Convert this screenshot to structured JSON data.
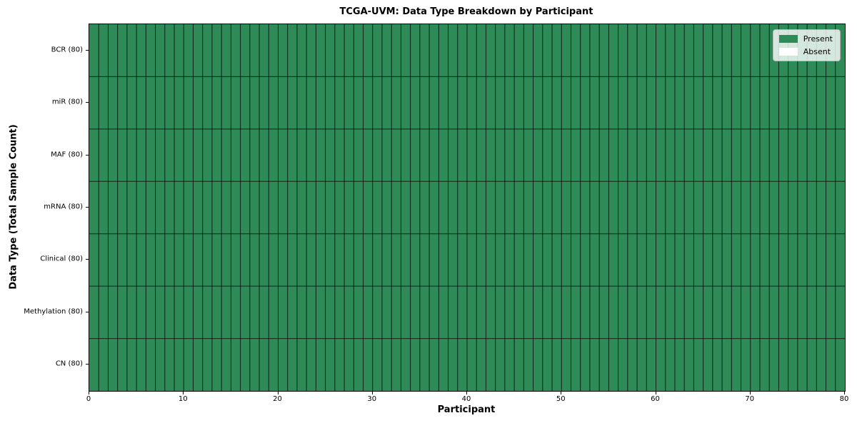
{
  "chart_data": {
    "type": "heatmap",
    "title": "TCGA-UVM: Data Type Breakdown by Participant",
    "xlabel": "Participant",
    "ylabel": "Data Type (Total Sample Count)",
    "xlim": [
      0,
      80
    ],
    "x_ticks": [
      0,
      10,
      20,
      30,
      40,
      50,
      60,
      70,
      80
    ],
    "n_participants": 80,
    "rows": [
      {
        "label": "BCR (80)",
        "data_type": "BCR",
        "total_sample_count": 80,
        "present_count": 80,
        "absent_count": 0
      },
      {
        "label": "miR (80)",
        "data_type": "miR",
        "total_sample_count": 80,
        "present_count": 80,
        "absent_count": 0
      },
      {
        "label": "MAF (80)",
        "data_type": "MAF",
        "total_sample_count": 80,
        "present_count": 80,
        "absent_count": 0
      },
      {
        "label": "mRNA (80)",
        "data_type": "mRNA",
        "total_sample_count": 80,
        "present_count": 80,
        "absent_count": 0
      },
      {
        "label": "Clinical (80)",
        "data_type": "Clinical",
        "total_sample_count": 80,
        "present_count": 80,
        "absent_count": 0
      },
      {
        "label": "Methylation (80)",
        "data_type": "Methylation",
        "total_sample_count": 80,
        "present_count": 80,
        "absent_count": 0
      },
      {
        "label": "CN (80)",
        "data_type": "CN",
        "total_sample_count": 80,
        "present_count": 80,
        "absent_count": 0
      }
    ],
    "cell_state_all_rows": "Present",
    "legend": {
      "position": "upper right",
      "entries": [
        {
          "label": "Present",
          "color": "#2e8b57"
        },
        {
          "label": "Absent",
          "color": "#ffffff"
        }
      ]
    },
    "colors": {
      "present": "#2e8b57",
      "absent": "#ffffff",
      "grid_line": "rgba(0,0,0,0.75)",
      "axis": "#000000"
    },
    "grid": true
  }
}
